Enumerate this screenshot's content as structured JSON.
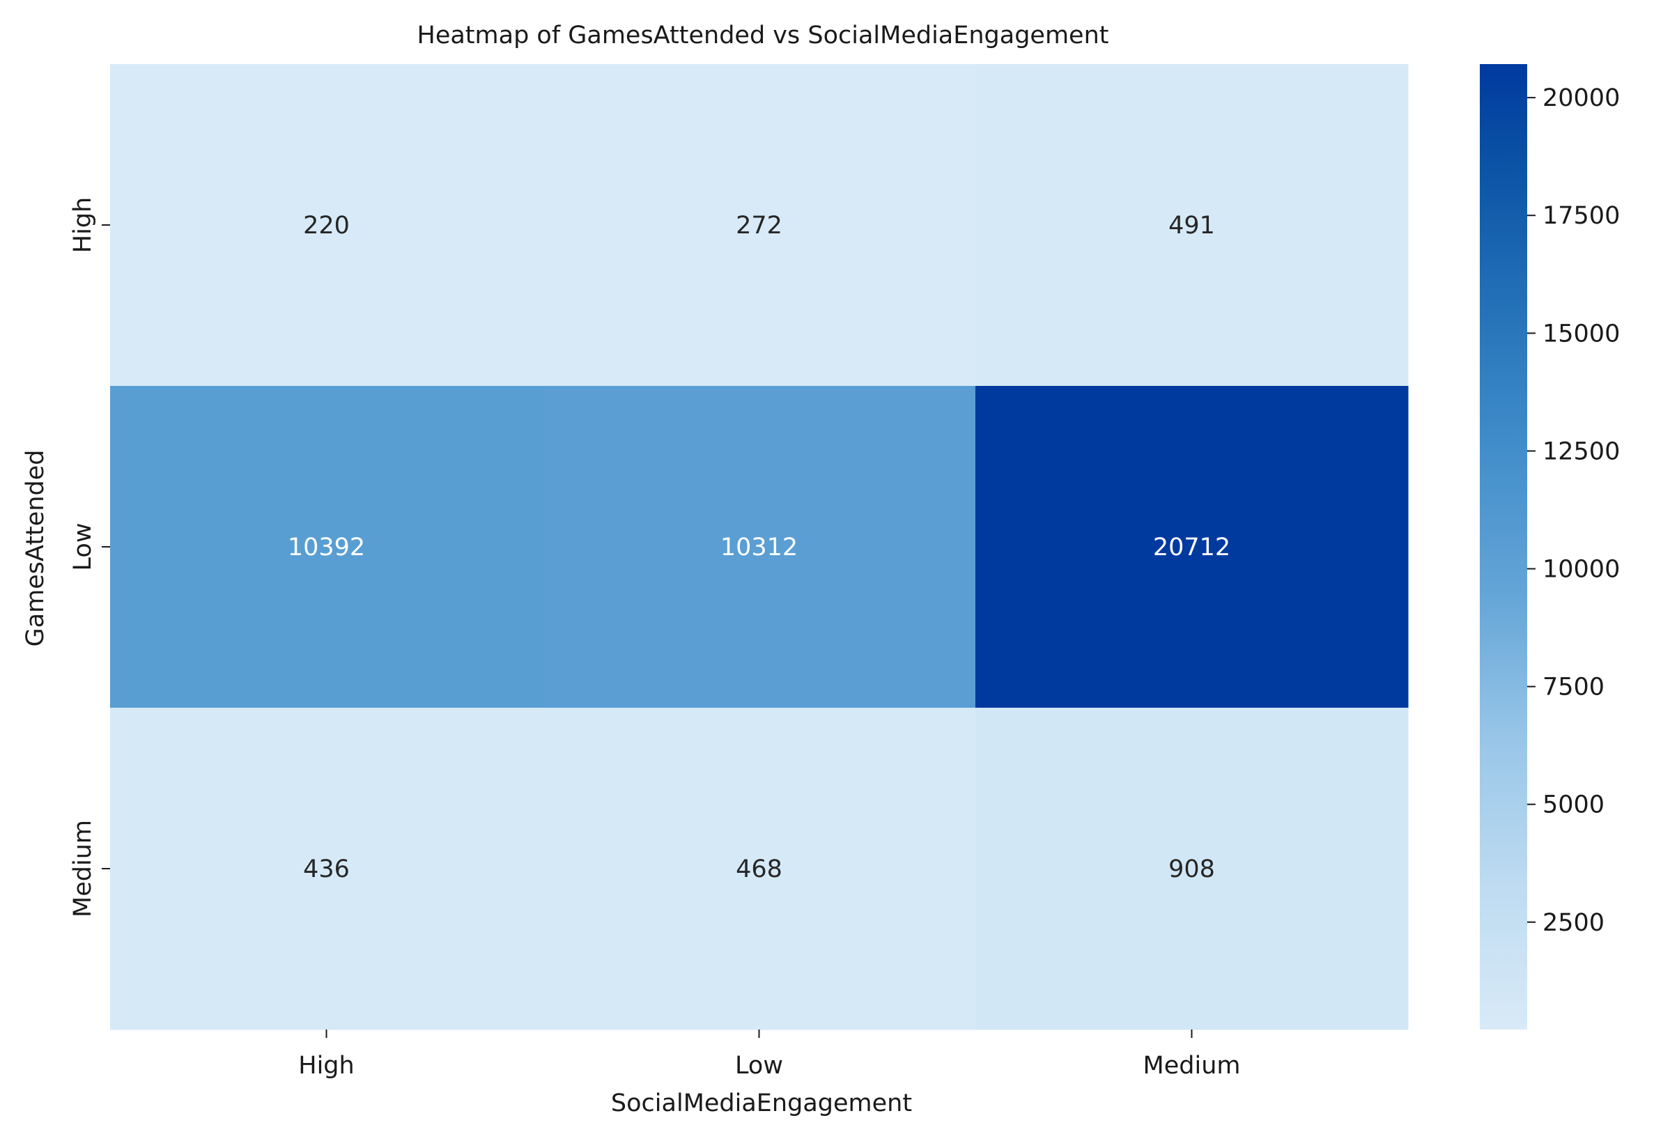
{
  "chart_data": {
    "type": "heatmap",
    "title": "Heatmap of GamesAttended vs SocialMediaEngagement",
    "xlabel": "SocialMediaEngagement",
    "ylabel": "GamesAttended",
    "x_categories": [
      "High",
      "Low",
      "Medium"
    ],
    "y_categories": [
      "High",
      "Low",
      "Medium"
    ],
    "values": [
      [
        220,
        272,
        491
      ],
      [
        10392,
        10312,
        20712
      ],
      [
        436,
        468,
        908
      ]
    ],
    "colorbar": {
      "min": 220,
      "max": 20712,
      "ticks": [
        2500,
        5000,
        7500,
        10000,
        12500,
        15000,
        17500,
        20000
      ],
      "colormap": "light blue to dark blue"
    },
    "colors": {
      "low": "#d8eaf7",
      "high": "#003a9f"
    }
  }
}
